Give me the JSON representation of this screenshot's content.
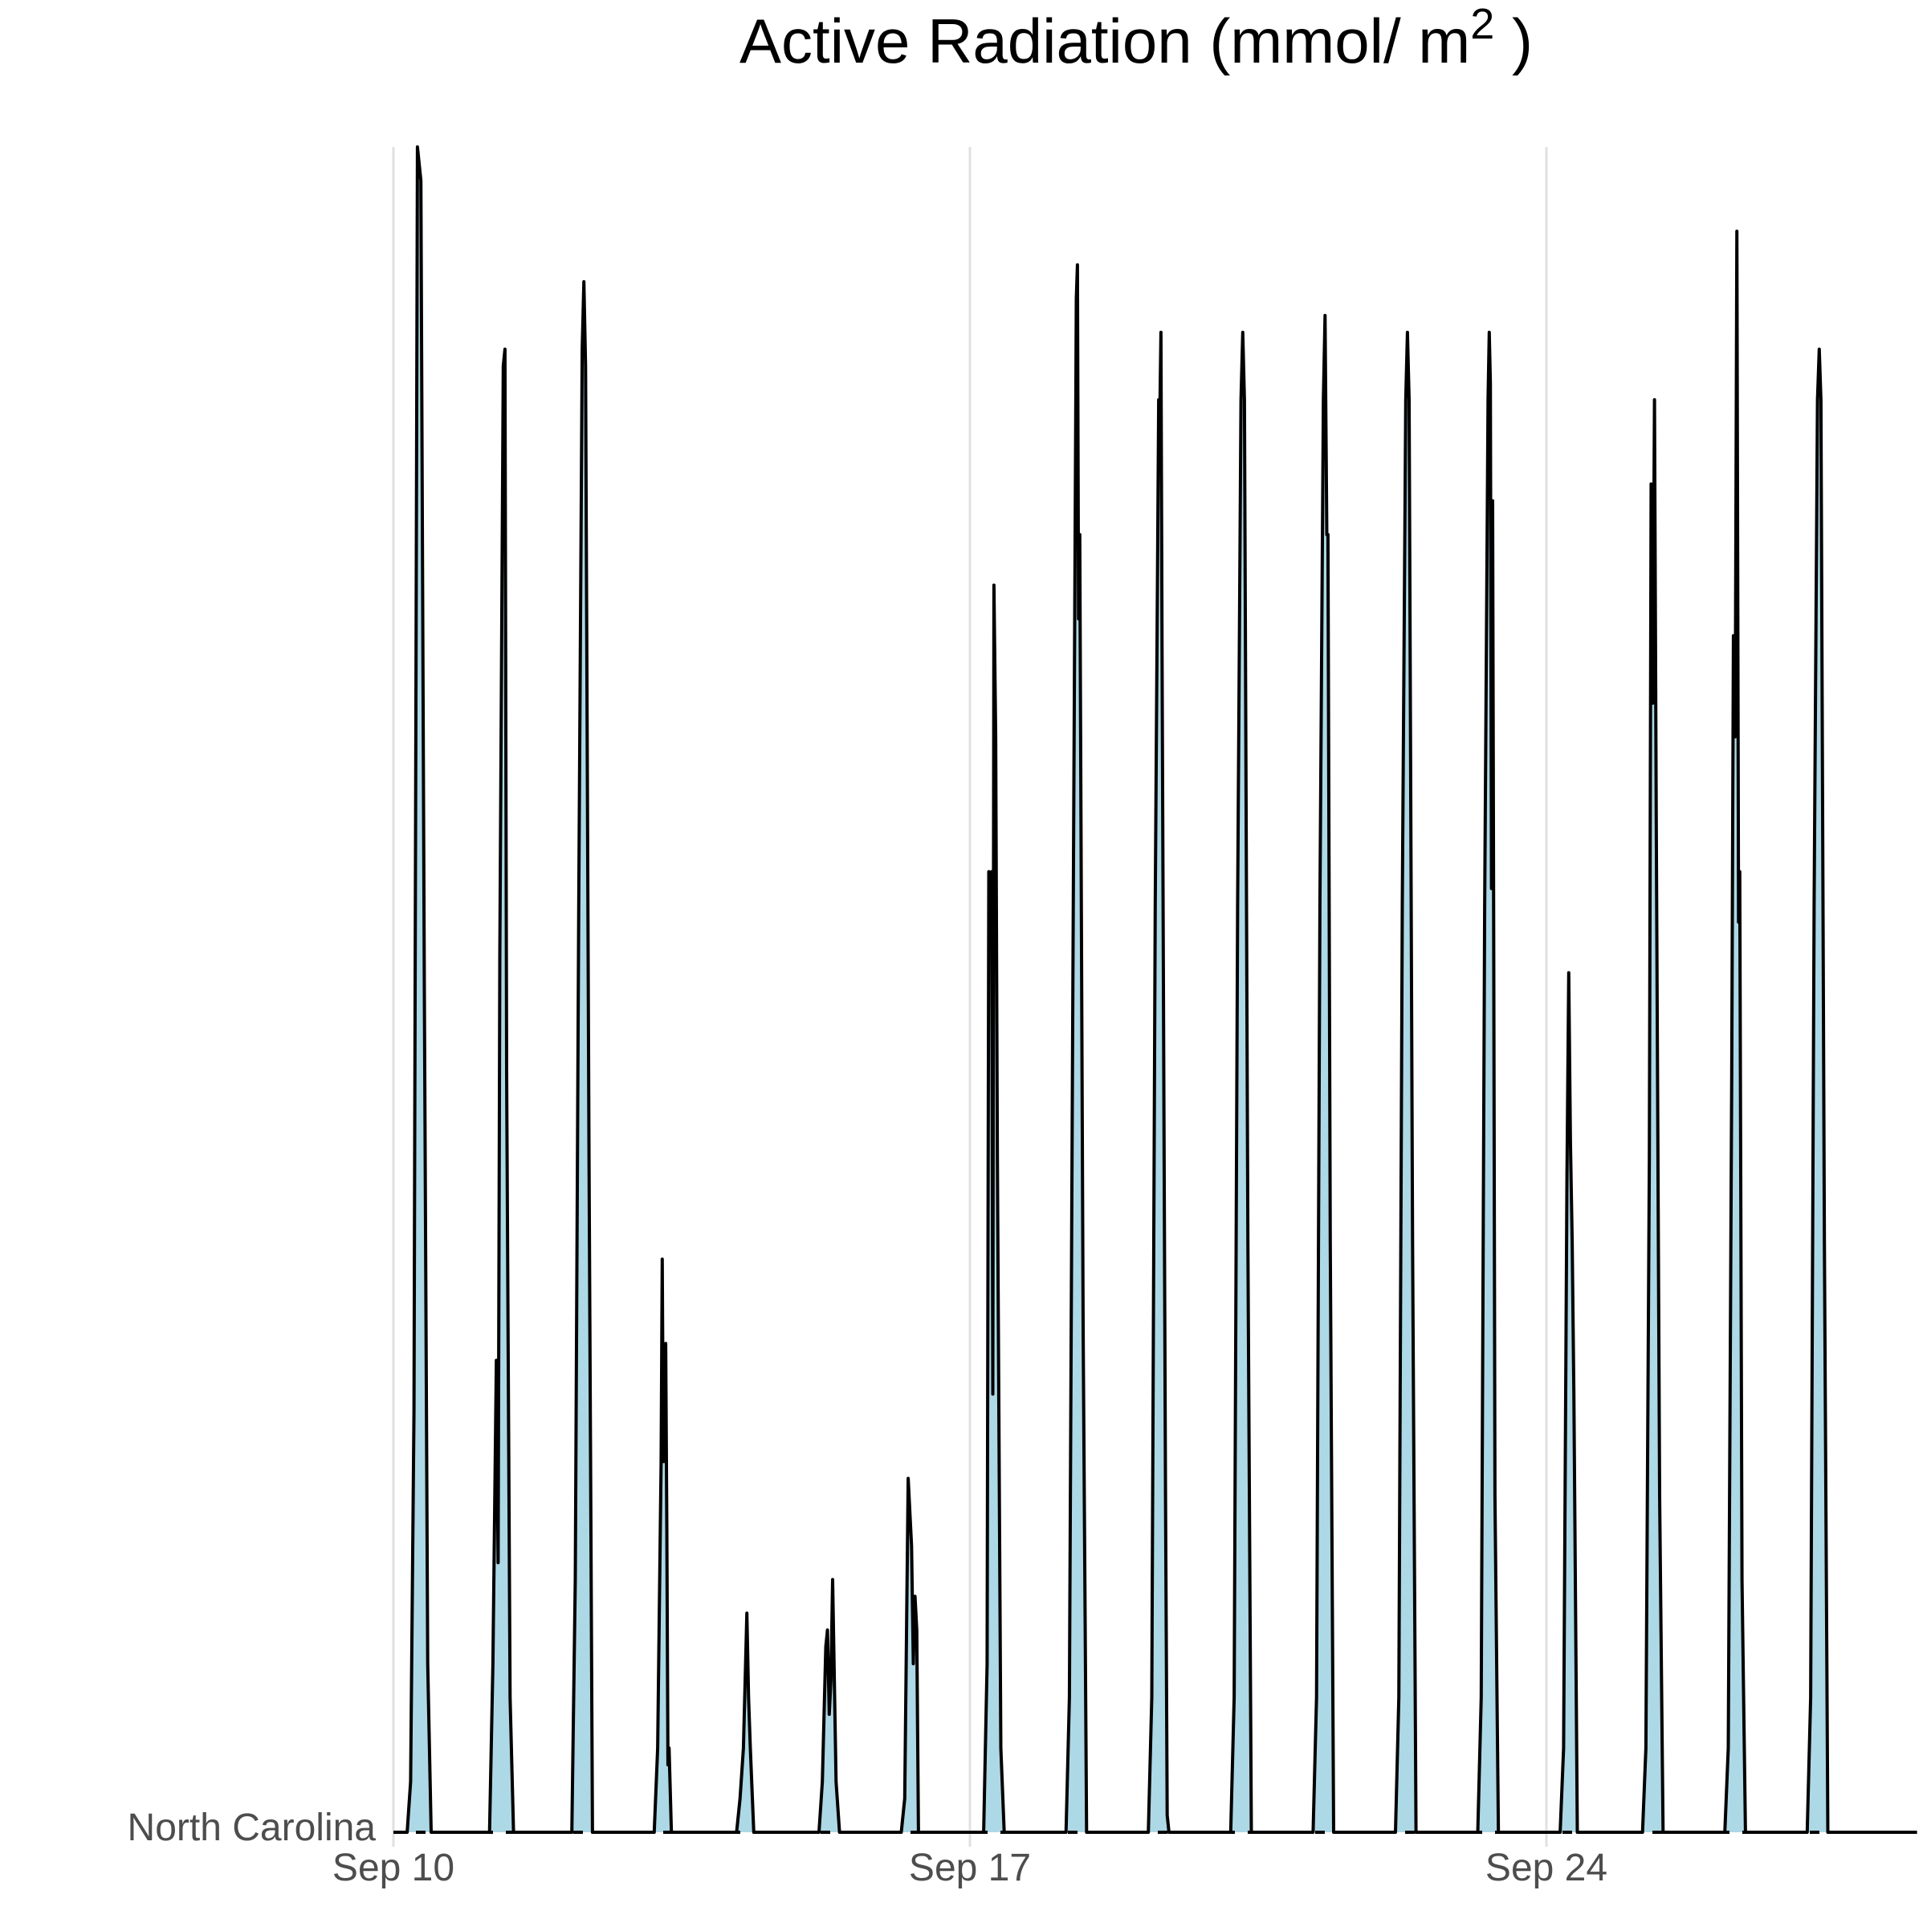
{
  "chart_data": {
    "type": "area",
    "title_line1": "Active Radiation (mmol/ m",
    "title_superscript": "2",
    "title_line1_end": " )",
    "xlabel": "",
    "ylabel": "",
    "grid": true,
    "legend": "none",
    "fill_color": "#add8e6",
    "line_color": "#000000",
    "grid_color": "#e0e0e0",
    "x_axis": {
      "type": "date",
      "range": [
        "2023-09-10",
        "2023-09-29"
      ],
      "ticks": [
        {
          "date": "2023-09-10",
          "label": "Sep 10"
        },
        {
          "date": "2023-09-17",
          "label": "Sep 17"
        },
        {
          "date": "2023-09-24",
          "label": "Sep 24"
        }
      ]
    },
    "y_categories": [
      "North Carolina"
    ],
    "series": [
      {
        "name": "North Carolina",
        "points": [
          [
            "2023-09-10 00:00",
            0
          ],
          [
            "2023-09-10 04:00",
            0
          ],
          [
            "2023-09-10 05:00",
            3
          ],
          [
            "2023-09-10 06:00",
            25
          ],
          [
            "2023-09-10 07:00",
            100
          ],
          [
            "2023-09-10 08:00",
            98
          ],
          [
            "2023-09-10 09:00",
            50
          ],
          [
            "2023-09-10 10:00",
            10
          ],
          [
            "2023-09-10 11:00",
            0
          ],
          [
            "2023-09-11 04:00",
            0
          ],
          [
            "2023-09-11 05:00",
            10
          ],
          [
            "2023-09-11 06:00",
            28
          ],
          [
            "2023-09-11 06:30",
            16
          ],
          [
            "2023-09-11 07:00",
            52
          ],
          [
            "2023-09-11 08:00",
            87
          ],
          [
            "2023-09-11 08:30",
            88
          ],
          [
            "2023-09-11 09:00",
            45
          ],
          [
            "2023-09-11 10:00",
            8
          ],
          [
            "2023-09-11 11:00",
            0
          ],
          [
            "2023-09-12 04:00",
            0
          ],
          [
            "2023-09-12 05:00",
            15
          ],
          [
            "2023-09-12 06:00",
            55
          ],
          [
            "2023-09-12 07:00",
            88
          ],
          [
            "2023-09-12 07:30",
            92
          ],
          [
            "2023-09-12 08:00",
            87
          ],
          [
            "2023-09-12 09:00",
            40
          ],
          [
            "2023-09-12 10:00",
            0
          ],
          [
            "2023-09-13 04:00",
            0
          ],
          [
            "2023-09-13 05:00",
            5
          ],
          [
            "2023-09-13 06:00",
            22
          ],
          [
            "2023-09-13 06:20",
            34
          ],
          [
            "2023-09-13 06:40",
            22
          ],
          [
            "2023-09-13 07:00",
            22
          ],
          [
            "2023-09-13 07:20",
            29
          ],
          [
            "2023-09-13 07:40",
            18
          ],
          [
            "2023-09-13 08:00",
            4
          ],
          [
            "2023-09-13 08:20",
            5
          ],
          [
            "2023-09-13 09:00",
            0
          ],
          [
            "2023-09-14 04:00",
            0
          ],
          [
            "2023-09-14 05:00",
            2
          ],
          [
            "2023-09-14 06:00",
            5
          ],
          [
            "2023-09-14 07:00",
            13
          ],
          [
            "2023-09-14 07:30",
            8
          ],
          [
            "2023-09-14 08:00",
            5
          ],
          [
            "2023-09-14 09:00",
            0
          ],
          [
            "2023-09-15 04:00",
            0
          ],
          [
            "2023-09-15 05:00",
            3
          ],
          [
            "2023-09-15 06:00",
            11
          ],
          [
            "2023-09-15 06:30",
            12
          ],
          [
            "2023-09-15 07:00",
            7
          ],
          [
            "2023-09-15 07:30",
            9
          ],
          [
            "2023-09-15 08:00",
            15
          ],
          [
            "2023-09-15 09:00",
            3
          ],
          [
            "2023-09-15 10:00",
            0
          ],
          [
            "2023-09-16 04:00",
            0
          ],
          [
            "2023-09-16 05:00",
            2
          ],
          [
            "2023-09-16 06:00",
            21
          ],
          [
            "2023-09-16 07:00",
            17
          ],
          [
            "2023-09-16 07:30",
            10
          ],
          [
            "2023-09-16 08:00",
            14
          ],
          [
            "2023-09-16 08:30",
            12
          ],
          [
            "2023-09-16 09:00",
            0
          ],
          [
            "2023-09-17 04:00",
            0
          ],
          [
            "2023-09-17 05:00",
            10
          ],
          [
            "2023-09-17 05:30",
            57
          ],
          [
            "2023-09-17 06:00",
            55
          ],
          [
            "2023-09-17 06:20",
            57
          ],
          [
            "2023-09-17 06:40",
            26
          ],
          [
            "2023-09-17 07:00",
            74
          ],
          [
            "2023-09-17 07:30",
            65
          ],
          [
            "2023-09-17 08:00",
            40
          ],
          [
            "2023-09-17 09:00",
            5
          ],
          [
            "2023-09-17 10:00",
            0
          ],
          [
            "2023-09-18 04:00",
            0
          ],
          [
            "2023-09-18 05:00",
            8
          ],
          [
            "2023-09-18 06:00",
            50
          ],
          [
            "2023-09-18 07:00",
            91
          ],
          [
            "2023-09-18 07:20",
            93
          ],
          [
            "2023-09-18 07:40",
            72
          ],
          [
            "2023-09-18 08:00",
            77
          ],
          [
            "2023-09-18 09:00",
            30
          ],
          [
            "2023-09-18 10:00",
            0
          ],
          [
            "2023-09-19 04:00",
            0
          ],
          [
            "2023-09-19 05:00",
            8
          ],
          [
            "2023-09-19 06:00",
            55
          ],
          [
            "2023-09-19 07:00",
            85
          ],
          [
            "2023-09-19 07:20",
            84
          ],
          [
            "2023-09-19 07:40",
            89
          ],
          [
            "2023-09-19 08:00",
            70
          ],
          [
            "2023-09-19 09:00",
            20
          ],
          [
            "2023-09-19 09:30",
            1
          ],
          [
            "2023-09-19 10:00",
            0
          ],
          [
            "2023-09-20 04:00",
            0
          ],
          [
            "2023-09-20 05:00",
            8
          ],
          [
            "2023-09-20 06:00",
            55
          ],
          [
            "2023-09-20 07:00",
            85
          ],
          [
            "2023-09-20 07:30",
            89
          ],
          [
            "2023-09-20 08:00",
            85
          ],
          [
            "2023-09-20 09:00",
            35
          ],
          [
            "2023-09-20 10:00",
            0
          ],
          [
            "2023-09-21 04:00",
            0
          ],
          [
            "2023-09-21 05:00",
            8
          ],
          [
            "2023-09-21 06:00",
            55
          ],
          [
            "2023-09-21 07:00",
            85
          ],
          [
            "2023-09-21 07:30",
            90
          ],
          [
            "2023-09-21 08:00",
            77
          ],
          [
            "2023-09-21 08:20",
            77
          ],
          [
            "2023-09-21 09:00",
            35
          ],
          [
            "2023-09-21 10:00",
            0
          ],
          [
            "2023-09-22 04:00",
            0
          ],
          [
            "2023-09-22 05:00",
            8
          ],
          [
            "2023-09-22 06:00",
            55
          ],
          [
            "2023-09-22 07:00",
            85
          ],
          [
            "2023-09-22 07:30",
            89
          ],
          [
            "2023-09-22 08:00",
            85
          ],
          [
            "2023-09-22 09:00",
            35
          ],
          [
            "2023-09-22 10:00",
            0
          ],
          [
            "2023-09-23 04:00",
            0
          ],
          [
            "2023-09-23 05:00",
            8
          ],
          [
            "2023-09-23 06:00",
            55
          ],
          [
            "2023-09-23 07:00",
            85
          ],
          [
            "2023-09-23 07:20",
            89
          ],
          [
            "2023-09-23 07:40",
            86
          ],
          [
            "2023-09-23 08:00",
            56
          ],
          [
            "2023-09-23 08:20",
            79
          ],
          [
            "2023-09-23 08:40",
            50
          ],
          [
            "2023-09-23 09:00",
            20
          ],
          [
            "2023-09-23 10:00",
            0
          ],
          [
            "2023-09-24 04:00",
            0
          ],
          [
            "2023-09-24 05:00",
            5
          ],
          [
            "2023-09-24 06:00",
            39
          ],
          [
            "2023-09-24 06:30",
            51
          ],
          [
            "2023-09-24 07:00",
            41
          ],
          [
            "2023-09-24 07:30",
            35
          ],
          [
            "2023-09-24 08:00",
            26
          ],
          [
            "2023-09-24 09:00",
            0
          ],
          [
            "2023-09-25 04:00",
            0
          ],
          [
            "2023-09-25 05:00",
            5
          ],
          [
            "2023-09-25 06:00",
            40
          ],
          [
            "2023-09-25 06:30",
            80
          ],
          [
            "2023-09-25 07:00",
            67
          ],
          [
            "2023-09-25 07:30",
            85
          ],
          [
            "2023-09-25 08:00",
            60
          ],
          [
            "2023-09-25 09:00",
            20
          ],
          [
            "2023-09-25 10:00",
            0
          ],
          [
            "2023-09-26 04:00",
            0
          ],
          [
            "2023-09-26 05:00",
            5
          ],
          [
            "2023-09-26 06:00",
            45
          ],
          [
            "2023-09-26 06:30",
            71
          ],
          [
            "2023-09-26 07:00",
            65
          ],
          [
            "2023-09-26 07:30",
            95
          ],
          [
            "2023-09-26 08:00",
            54
          ],
          [
            "2023-09-26 08:20",
            57
          ],
          [
            "2023-09-26 09:00",
            15
          ],
          [
            "2023-09-26 10:00",
            0
          ],
          [
            "2023-09-27 04:00",
            0
          ],
          [
            "2023-09-27 05:00",
            8
          ],
          [
            "2023-09-27 06:00",
            55
          ],
          [
            "2023-09-27 07:00",
            85
          ],
          [
            "2023-09-27 07:30",
            88
          ],
          [
            "2023-09-27 08:00",
            85
          ],
          [
            "2023-09-27 09:00",
            35
          ],
          [
            "2023-09-27 10:00",
            0
          ],
          [
            "2023-09-28 00:00",
            0
          ],
          [
            "2023-09-28 12:00",
            0
          ]
        ]
      }
    ]
  }
}
